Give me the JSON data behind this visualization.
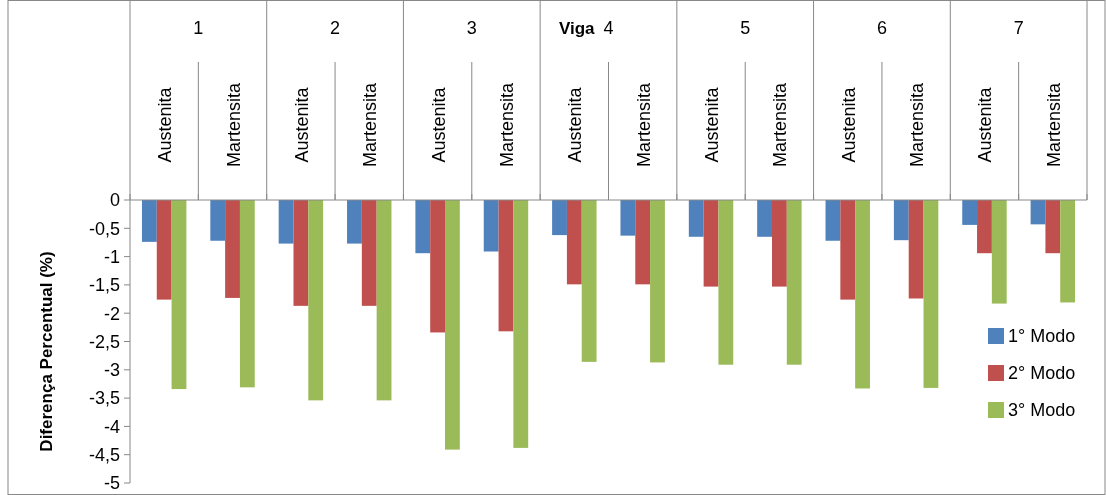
{
  "chart_data": {
    "type": "bar",
    "xlabel": "Viga",
    "ylabel": "Diferença Percentual (%)",
    "categories": [
      "Austenita",
      "Martensita",
      "Austenita",
      "Martensita",
      "Austenita",
      "Martensita",
      "Austenita",
      "Martensita",
      "Austenita",
      "Martensita",
      "Austenita",
      "Martensita",
      "Austenita",
      "Martensita"
    ],
    "annotations": [
      "1",
      "2",
      "3",
      "4",
      "5",
      "6",
      "7"
    ],
    "series": [
      {
        "name": "1° Modo",
        "color": "#4f81bd",
        "values": [
          -0.74,
          -0.72,
          -0.77,
          -0.77,
          -0.94,
          -0.91,
          -0.62,
          -0.63,
          -0.65,
          -0.65,
          -0.72,
          -0.71,
          -0.44,
          -0.43
        ]
      },
      {
        "name": "2° Modo",
        "color": "#c0504d",
        "values": [
          -1.76,
          -1.73,
          -1.87,
          -1.87,
          -2.34,
          -2.32,
          -1.49,
          -1.49,
          -1.53,
          -1.53,
          -1.76,
          -1.74,
          -0.94,
          -0.94
        ]
      },
      {
        "name": "3° Modo",
        "color": "#9bbb59",
        "values": [
          -3.34,
          -3.31,
          -3.54,
          -3.54,
          -4.41,
          -4.38,
          -2.86,
          -2.87,
          -2.91,
          -2.91,
          -3.33,
          -3.32,
          -1.83,
          -1.81
        ]
      }
    ],
    "ylim": [
      -5,
      0
    ],
    "yticks": [
      0,
      {
        "value": -0.5,
        "label": "-0,5"
      },
      -1,
      {
        "value": -1.5,
        "label": "-1,5"
      },
      -2,
      {
        "value": -2.5,
        "label": "-2,5"
      },
      -3,
      {
        "value": -3.5,
        "label": "-3,5"
      },
      -4,
      {
        "value": -4.5,
        "label": "-4,5"
      },
      -5
    ],
    "legend": "right",
    "grid": false
  }
}
